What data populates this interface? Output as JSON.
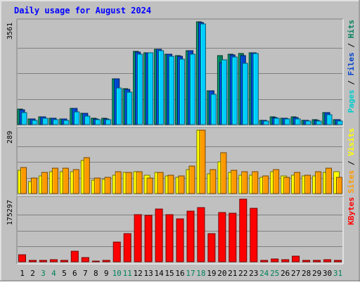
{
  "chart_data": {
    "type": "bar",
    "title": "Daily usage for August 2024",
    "categories": [
      "1",
      "2",
      "3",
      "4",
      "5",
      "6",
      "7",
      "8",
      "9",
      "10",
      "11",
      "12",
      "13",
      "14",
      "15",
      "16",
      "17",
      "18",
      "19",
      "20",
      "21",
      "22",
      "23",
      "24",
      "25",
      "26",
      "27",
      "28",
      "29",
      "30",
      "31"
    ],
    "weekend_days": [
      "3",
      "4",
      "10",
      "11",
      "17",
      "18",
      "24",
      "25",
      "31"
    ],
    "panels": [
      {
        "name": "traffic",
        "y_max_label": "3561",
        "ylim": [
          0,
          3561
        ],
        "side_label": [
          {
            "text": "Pages",
            "color": "#00cccc"
          },
          {
            "text": " / ",
            "color": "#000000"
          },
          {
            "text": "Files",
            "color": "#0044cc"
          },
          {
            "text": " / ",
            "color": "#000000"
          },
          {
            "text": "Hits",
            "color": "#00805c"
          }
        ],
        "series": [
          {
            "name": "Hits",
            "color": "#00805c",
            "values": [
              530,
              190,
              280,
              220,
              200,
              560,
              390,
              210,
              210,
              1590,
              1240,
              2530,
              2500,
              2610,
              2450,
              2380,
              2570,
              3561,
              1180,
              2380,
              2430,
              2460,
              2500,
              150,
              260,
              230,
              260,
              150,
              160,
              420,
              170
            ]
          },
          {
            "name": "Files",
            "color": "#0044cc",
            "values": [
              520,
              185,
              275,
              215,
              195,
              555,
              380,
              205,
              205,
              1580,
              1230,
              2520,
              2490,
              2600,
              2440,
              2370,
              2560,
              3540,
              1170,
              2150,
              2420,
              2380,
              2480,
              145,
              255,
              225,
              255,
              145,
              155,
              410,
              165
            ]
          },
          {
            "name": "Pages",
            "color": "#00ccff",
            "values": [
              420,
              150,
              225,
              170,
              150,
              440,
              300,
              165,
              160,
              1280,
              1120,
              2440,
              2480,
              2560,
              2370,
              2260,
              2450,
              3480,
              1060,
              2240,
              2330,
              2130,
              2460,
              120,
              210,
              190,
              205,
              120,
              125,
              340,
              130
            ]
          }
        ]
      },
      {
        "name": "sites-visits",
        "y_max_label": "289",
        "ylim": [
          0,
          289
        ],
        "side_label": [
          {
            "text": "Sites",
            "color": "#ff9900"
          },
          {
            "text": " / ",
            "color": "#000000"
          },
          {
            "text": "Visits",
            "color": "#ffff00"
          }
        ],
        "series": [
          {
            "name": "Visits",
            "color": "#ffff00",
            "values": [
              105,
              55,
              80,
              100,
              100,
              100,
              150,
              60,
              65,
              85,
              95,
              100,
              85,
              95,
              80,
              75,
              110,
              289,
              90,
              145,
              95,
              85,
              85,
              75,
              100,
              80,
              85,
              80,
              80,
              95,
              100
            ]
          },
          {
            "name": "Sites",
            "color": "#ff9900",
            "values": [
              120,
              70,
              95,
              115,
              115,
              110,
              165,
              70,
              75,
              100,
              95,
              100,
              70,
              95,
              85,
              80,
              125,
              289,
              110,
              185,
              105,
              100,
              100,
              80,
              110,
              75,
              95,
              85,
              100,
              115,
              75
            ]
          }
        ]
      },
      {
        "name": "kbytes",
        "y_max_label": "175297",
        "ylim": [
          0,
          175297
        ],
        "side_label": [
          {
            "text": "KBytes",
            "color": "#ff0000"
          }
        ],
        "series": [
          {
            "name": "KBytes",
            "color": "#ff0000",
            "values": [
              20500,
              4000,
              4000,
              5500,
              3500,
              29000,
              11500,
              2000,
              3000,
              56000,
              79000,
              132000,
              130000,
              147000,
              131000,
              121000,
              142000,
              152000,
              78000,
              138000,
              136000,
              175297,
              149000,
              3000,
              7000,
              6500,
              16500,
              3500,
              3500,
              5500,
              4000
            ]
          }
        ]
      }
    ],
    "grid": true
  },
  "colors": {
    "background": "#c0c0c0",
    "title": "#0000ff",
    "weekday_label": "#000000",
    "weekend_label": "#00805c",
    "gridline": "#808080"
  }
}
